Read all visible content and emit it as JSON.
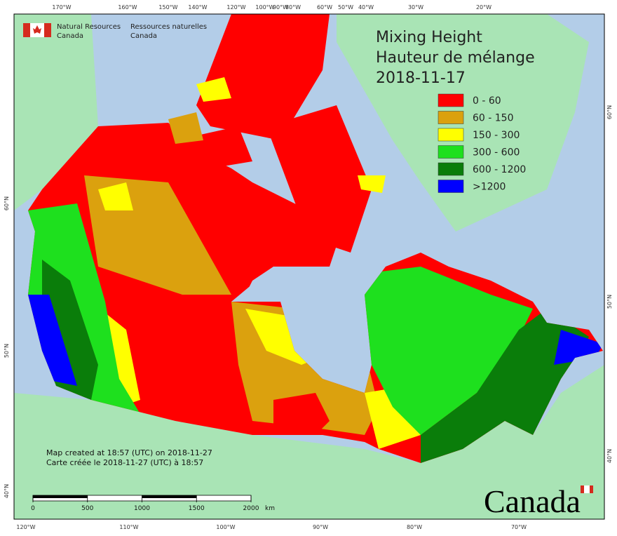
{
  "header": {
    "org_en": [
      "Natural Resources",
      "Canada"
    ],
    "org_fr": [
      "Ressources naturelles",
      "Canada"
    ]
  },
  "title": [
    "Mixing Height",
    "Hauteur de mélange",
    "2018-11-17"
  ],
  "legend": {
    "items": [
      {
        "label": "0 - 60",
        "color": "#ff0000"
      },
      {
        "label": "60 - 150",
        "color": "#dba10e"
      },
      {
        "label": "150 - 300",
        "color": "#ffff00"
      },
      {
        "label": "300 - 600",
        "color": "#1ee01e"
      },
      {
        "label": "600 - 1200",
        "color": "#0a7d0a"
      },
      {
        "label": ">1200",
        "color": "#0000ff"
      }
    ]
  },
  "notes": [
    "Map created at 18:57 (UTC) on 2018-11-27",
    "Carte créée le 2018-11-27 (UTC) à 18:57"
  ],
  "scale": {
    "ticks": [
      0,
      500,
      1000,
      1500,
      2000
    ],
    "unit": "km"
  },
  "graticule": {
    "top": [
      "170°W",
      "160°W",
      "150°W",
      "140°W",
      "120°W",
      "100°W",
      "90°W",
      "80°W",
      "60°W",
      "50°W",
      "40°W",
      "30°W",
      "20°W"
    ],
    "bottom": [
      "120°W",
      "110°W",
      "100°W",
      "90°W",
      "80°W",
      "70°W"
    ],
    "left": [
      "60°N",
      "50°N",
      "40°N"
    ],
    "right": [
      "60°N",
      "50°N",
      "40°N"
    ]
  },
  "wordmark": "Canada"
}
